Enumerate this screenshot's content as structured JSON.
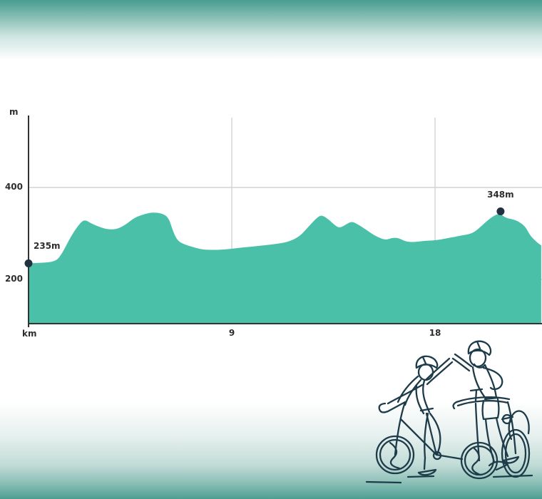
{
  "chart_data": {
    "type": "area",
    "title": "",
    "xlabel": "km",
    "ylabel": "m",
    "x_axis_unit_label": "km",
    "y_axis_unit_label": "m",
    "x_ticks": [
      {
        "value": 9,
        "label": "9"
      },
      {
        "value": 18,
        "label": "18"
      }
    ],
    "y_ticks": [
      {
        "value": 400,
        "label": "400"
      },
      {
        "value": 200,
        "label": "200"
      }
    ],
    "x_range_km": [
      0,
      22.7
    ],
    "y_range_m": [
      100,
      565
    ],
    "grid_on": true,
    "area_color": "#4ac0a8",
    "grid_color": "#d2d2d2",
    "axis_color": "#333333",
    "marker_color": "#22313f",
    "label_color": "#2e2e2e",
    "series": [
      {
        "name": "elevation-profile",
        "points": [
          [
            0,
            235
          ],
          [
            0.5,
            236
          ],
          [
            1.1,
            238
          ],
          [
            1.4,
            248
          ],
          [
            1.9,
            296
          ],
          [
            2.3,
            324
          ],
          [
            2.5,
            330
          ],
          [
            2.8,
            321
          ],
          [
            3.2,
            313
          ],
          [
            3.5,
            309
          ],
          [
            3.9,
            309
          ],
          [
            4.3,
            319
          ],
          [
            4.7,
            335
          ],
          [
            5.2,
            343
          ],
          [
            5.5,
            346
          ],
          [
            5.9,
            344
          ],
          [
            6.2,
            335
          ],
          [
            6.4,
            304
          ],
          [
            6.6,
            284
          ],
          [
            6.9,
            276
          ],
          [
            7.3,
            270
          ],
          [
            7.7,
            265
          ],
          [
            8.2,
            264
          ],
          [
            8.7,
            265
          ],
          [
            9.2,
            268
          ],
          [
            9.8,
            271
          ],
          [
            10.4,
            274
          ],
          [
            11.1,
            278
          ],
          [
            11.5,
            282
          ],
          [
            12,
            293
          ],
          [
            12.4,
            315
          ],
          [
            12.8,
            336
          ],
          [
            13,
            340
          ],
          [
            13.3,
            330
          ],
          [
            13.6,
            316
          ],
          [
            13.8,
            312
          ],
          [
            14.1,
            321
          ],
          [
            14.3,
            326
          ],
          [
            14.5,
            322
          ],
          [
            14.9,
            310
          ],
          [
            15.3,
            296
          ],
          [
            15.8,
            285
          ],
          [
            16.1,
            291
          ],
          [
            16.4,
            290
          ],
          [
            16.7,
            282
          ],
          [
            17.1,
            281
          ],
          [
            17.5,
            284
          ],
          [
            18,
            285
          ],
          [
            18.6,
            290
          ],
          [
            19.1,
            295
          ],
          [
            19.6,
            299
          ],
          [
            19.9,
            309
          ],
          [
            20.2,
            323
          ],
          [
            20.5,
            335
          ],
          [
            20.7,
            341
          ],
          [
            20.9,
            343
          ],
          [
            21,
            338
          ],
          [
            21.2,
            333
          ],
          [
            21.5,
            330
          ],
          [
            21.7,
            326
          ],
          [
            22,
            315
          ],
          [
            22.2,
            296
          ],
          [
            22.5,
            281
          ],
          [
            22.7,
            274
          ]
        ]
      }
    ],
    "annotations": [
      {
        "km": 0,
        "m": 235,
        "label": "235m"
      },
      {
        "km": 20.9,
        "m": 348,
        "label": "348m"
      }
    ]
  },
  "banners": {
    "top_gradient": [
      "#479d8f",
      "#ffffff"
    ],
    "bottom_gradient": [
      "#ffffff",
      "#4c9e92"
    ]
  },
  "illustration": {
    "name": "two-cyclists-high-five-line-art",
    "stroke_color": "#1e3b49"
  }
}
